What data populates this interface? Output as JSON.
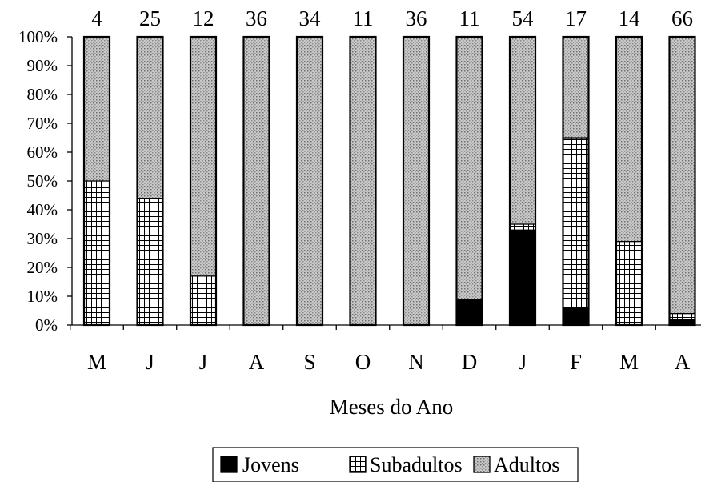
{
  "chart_data": {
    "type": "bar",
    "stacked": true,
    "percent_stacked": true,
    "categories": [
      "M",
      "J",
      "J",
      "A",
      "S",
      "O",
      "N",
      "D",
      "J",
      "F",
      "M",
      "A"
    ],
    "counts": [
      "4",
      "25",
      "12",
      "36",
      "34",
      "11",
      "36",
      "11",
      "54",
      "17",
      "14",
      "66"
    ],
    "series": [
      {
        "name": "Jovens",
        "values": [
          0,
          0,
          0,
          0,
          0,
          0,
          0,
          9,
          33,
          6,
          0,
          2
        ]
      },
      {
        "name": "Subadultos",
        "values": [
          50,
          44,
          17,
          0,
          0,
          0,
          0,
          0,
          2,
          59,
          29,
          2
        ]
      },
      {
        "name": "Adultos",
        "values": [
          50,
          56,
          83,
          100,
          100,
          100,
          100,
          91,
          65,
          35,
          71,
          96
        ]
      }
    ],
    "yticks": [
      "0%",
      "10%",
      "20%",
      "30%",
      "40%",
      "50%",
      "60%",
      "70%",
      "80%",
      "90%",
      "100%"
    ],
    "ylim": [
      0,
      100
    ],
    "xlabel": "Meses do Ano",
    "legend_position": "bottom",
    "colors": {
      "Jovens": "#000000",
      "Subadultos": "#ffffff",
      "Adultos": "#b4b4b4"
    }
  }
}
